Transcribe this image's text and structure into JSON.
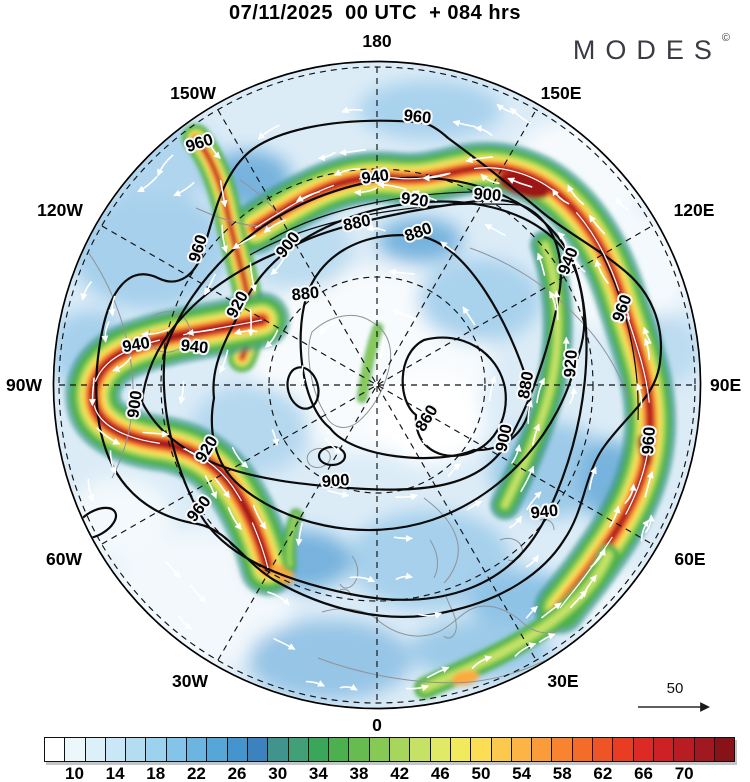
{
  "header": {
    "title": "07/11/2025  00 UTC  + 084 hrs"
  },
  "brand": {
    "name": "MODES",
    "mark": "©"
  },
  "map": {
    "meridian_labels": [
      "180",
      "150W",
      "150E",
      "120W",
      "120E",
      "90W",
      "90E",
      "60W",
      "60E",
      "30W",
      "30E",
      "0"
    ],
    "contour_labels": [
      "960",
      "940",
      "920",
      "900",
      "880",
      "880",
      "960",
      "900",
      "920",
      "880",
      "940",
      "940",
      "900",
      "920",
      "960",
      "960",
      "900",
      "860",
      "900",
      "880",
      "920",
      "940",
      "960",
      "960",
      "940"
    ]
  },
  "reference_arrow": {
    "label": "50"
  },
  "legend": {
    "tick_labels": [
      "10",
      "14",
      "18",
      "22",
      "26",
      "30",
      "34",
      "38",
      "42",
      "46",
      "50",
      "54",
      "58",
      "62",
      "66",
      "70"
    ],
    "cell_colors": [
      "#ffffff",
      "#ecf7fc",
      "#dcf0fa",
      "#c9e7f6",
      "#b4ddf2",
      "#9dd2ee",
      "#84c4e8",
      "#6cb5e0",
      "#57a6d8",
      "#4494ce",
      "#3c82be",
      "#41948e",
      "#41a077",
      "#3aa659",
      "#4db04e",
      "#66bc4e",
      "#86ca55",
      "#a7d65c",
      "#c5e266",
      "#e0ea66",
      "#f2ea5e",
      "#fbde56",
      "#fcc94f",
      "#fdb446",
      "#fb9c3a",
      "#f8842f",
      "#f36c2a",
      "#ee5426",
      "#e83c23",
      "#dd2a24",
      "#cd2126",
      "#b81d23",
      "#a01820",
      "#871218"
    ]
  }
}
